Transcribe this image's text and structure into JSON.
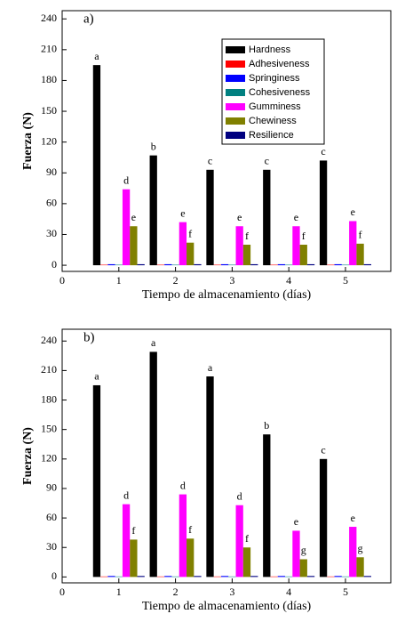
{
  "chart_data": [
    {
      "type": "bar",
      "panel_label": "a)",
      "x_label": "Tiempo de almacenamiento (días)",
      "y_label": "Fuerza (N)",
      "x": [
        1,
        2,
        3,
        4,
        5
      ],
      "xlim": [
        0,
        5.8
      ],
      "xticks": [
        0,
        1,
        2,
        3,
        4,
        5
      ],
      "ylim": [
        -6,
        248
      ],
      "yticks": [
        0,
        30,
        60,
        90,
        120,
        150,
        180,
        210,
        240
      ],
      "legend": "upper right",
      "series": [
        {
          "name": "Hardness",
          "color": "#000000",
          "values": [
            195,
            107,
            93,
            93,
            102
          ],
          "letters": [
            "a",
            "b",
            "c",
            "c",
            "c"
          ]
        },
        {
          "name": "Adhesiveness",
          "color": "#ff0000",
          "values": [
            0.5,
            0.5,
            0.5,
            0.5,
            0.5
          ]
        },
        {
          "name": "Springiness",
          "color": "#0000ff",
          "values": [
            1,
            1,
            1,
            1,
            1
          ]
        },
        {
          "name": "Cohesiveness",
          "color": "#008080",
          "values": [
            0.5,
            0.5,
            0.5,
            0.5,
            0.5
          ]
        },
        {
          "name": "Gumminess",
          "color": "#ff00ff",
          "values": [
            74,
            42,
            38,
            38,
            43
          ],
          "letters": [
            "d",
            "e",
            "e",
            "e",
            "e"
          ]
        },
        {
          "name": "Chewiness",
          "color": "#808000",
          "values": [
            38,
            22,
            20,
            20,
            21
          ],
          "letters": [
            "e",
            "f",
            "f",
            "f",
            "f"
          ]
        },
        {
          "name": "Resilience",
          "color": "#000080",
          "values": [
            1,
            1,
            1,
            1,
            1
          ]
        }
      ]
    },
    {
      "type": "bar",
      "panel_label": "b)",
      "x_label": "Tiempo de almacenamiento (días)",
      "y_label": "Fuerza (N)",
      "x": [
        1,
        2,
        3,
        4,
        5
      ],
      "xlim": [
        0,
        5.8
      ],
      "xticks": [
        0,
        1,
        2,
        3,
        4,
        5
      ],
      "ylim": [
        -6,
        252
      ],
      "yticks": [
        0,
        30,
        60,
        90,
        120,
        150,
        180,
        210,
        240
      ],
      "series": [
        {
          "color": "#000000",
          "values": [
            195,
            229,
            204,
            145,
            120
          ],
          "letters": [
            "a",
            "a",
            "a",
            "b",
            "c"
          ]
        },
        {
          "color": "#ff0000",
          "values": [
            0.5,
            0.5,
            0.5,
            0.5,
            0.5
          ]
        },
        {
          "color": "#0000ff",
          "values": [
            1,
            1,
            1,
            1,
            1
          ]
        },
        {
          "color": "#008080",
          "values": [
            0.5,
            0.5,
            0.5,
            0.5,
            0.5
          ]
        },
        {
          "color": "#ff00ff",
          "values": [
            74,
            84,
            73,
            47,
            51
          ],
          "letters": [
            "d",
            "d",
            "d",
            "e",
            "e"
          ]
        },
        {
          "color": "#808000",
          "values": [
            38,
            39,
            30,
            18,
            20
          ],
          "letters": [
            "f",
            "f",
            "f",
            "g",
            "g"
          ]
        },
        {
          "color": "#000080",
          "values": [
            1,
            1,
            1,
            1,
            1
          ]
        }
      ]
    }
  ]
}
